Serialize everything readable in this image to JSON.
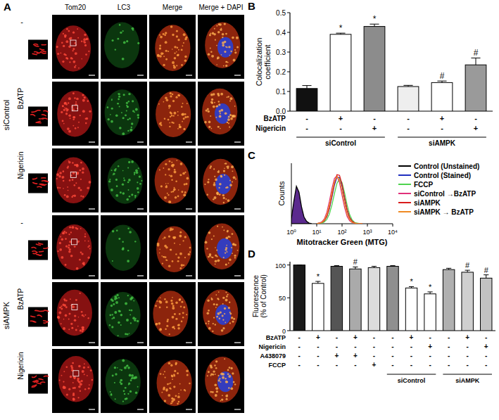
{
  "panel_a": {
    "label": "A",
    "columns": [
      "Tom20",
      "LC3",
      "Merge",
      "Merge + DAPI"
    ],
    "groups": [
      {
        "label": "siControl",
        "rows": [
          "-",
          "BzATP",
          "Nigericin"
        ]
      },
      {
        "label": "siAMPK",
        "rows": [
          "-",
          "BzATP",
          "Nigericin"
        ]
      }
    ]
  },
  "chart_data": [
    {
      "type": "bar",
      "title": "B",
      "y_label": "Colocalization coefficient",
      "values": [
        0.115,
        0.39,
        0.43,
        0.125,
        0.145,
        0.235
      ],
      "errors": [
        0.015,
        0.006,
        0.012,
        0.006,
        0.008,
        0.035
      ],
      "annotations": [
        null,
        "*",
        "*",
        null,
        "#",
        "#"
      ],
      "colors": [
        "#111111",
        "#ffffff",
        "#8c8c8c",
        "#eeeeee",
        "#ffffff",
        "#9a9a9a"
      ],
      "ylim": [
        0,
        0.5
      ],
      "yticks": [
        {
          "value": 0,
          "label": "0.0"
        },
        0.1,
        0.2,
        0.3,
        0.4,
        0.5
      ],
      "conditions": [
        {
          "label": "BzATP",
          "values": [
            "-",
            "+",
            "-",
            "-",
            "+",
            "-"
          ]
        },
        {
          "label": "Nigericin",
          "values": [
            "-",
            "-",
            "+",
            "-",
            "-",
            "+"
          ]
        }
      ],
      "groups": [
        {
          "label": "siControl",
          "start": 0,
          "count": 3
        },
        {
          "label": "siAMPK",
          "start": 3,
          "count": 3
        }
      ]
    },
    {
      "type": "line",
      "title": "C",
      "x_label": "Mitotracker Green (MTG)",
      "y_label": "Counts",
      "log": "x",
      "xlim": [
        1,
        10000
      ],
      "xticks": [
        {
          "value": 1,
          "label": "10⁰"
        },
        {
          "value": 10,
          "label": "10¹"
        },
        {
          "value": 100,
          "label": "10²"
        },
        {
          "value": 1000,
          "label": "10³"
        },
        {
          "value": 10000,
          "label": "10⁴"
        }
      ],
      "ylim": [
        0,
        100
      ],
      "tick_labels": "x",
      "legend": "right",
      "series": [
        {
          "name": "Control (Unstained)",
          "color": "#000000",
          "type": "area",
          "x": [
            1,
            1.26,
            1.58,
            2,
            2.51,
            3.16,
            3.98,
            5.01,
            6.31
          ],
          "values": [
            8,
            38,
            62,
            52,
            28,
            11,
            4,
            1,
            0
          ]
        },
        {
          "name": "Control (Stained)",
          "color": "#1f2fbf",
          "type": "line",
          "x": [
            10,
            12.59,
            15.85,
            19.95,
            25.12,
            31.62,
            39.81,
            50.12,
            63.1,
            79.43,
            100,
            125.89,
            158.49,
            199.53,
            251.19,
            316.23,
            398.11,
            501.19,
            630.96
          ],
          "values": [
            0,
            1,
            2,
            5,
            12,
            25,
            44,
            64,
            77,
            76,
            62,
            41,
            22,
            10,
            4,
            1,
            0,
            0,
            0
          ]
        },
        {
          "name": "FCCP",
          "color": "#4fd34f",
          "type": "line",
          "x": [
            10,
            12.59,
            15.85,
            19.95,
            25.12,
            31.62,
            39.81,
            50.12,
            63.1,
            79.43,
            100,
            125.89,
            158.49,
            199.53,
            251.19,
            316.23,
            398.11,
            501.19,
            630.96
          ],
          "values": [
            0,
            0,
            1,
            3,
            7,
            16,
            31,
            50,
            67,
            74,
            68,
            51,
            31,
            15,
            6,
            2,
            1,
            0,
            0
          ]
        },
        {
          "name": "siControl →BzATP",
          "color": "#e0307a",
          "type": "line",
          "x": [
            10,
            12.59,
            15.85,
            19.95,
            25.12,
            31.62,
            39.81,
            50.12,
            63.1,
            79.43,
            100,
            125.89,
            158.49,
            199.53,
            251.19,
            316.23,
            398.11,
            501.19,
            630.96
          ],
          "values": [
            0,
            1,
            3,
            8,
            19,
            37,
            58,
            75,
            79,
            68,
            47,
            27,
            12,
            5,
            2,
            1,
            0,
            0,
            0
          ]
        },
        {
          "name": "siAMPK",
          "color": "#d91c1c",
          "type": "line",
          "x": [
            10,
            12.59,
            15.85,
            19.95,
            25.12,
            31.62,
            39.81,
            50.12,
            63.1,
            79.43,
            100,
            125.89,
            158.49,
            199.53,
            251.19,
            316.23,
            398.11,
            501.19,
            630.96
          ],
          "values": [
            0,
            1,
            2,
            5,
            12,
            26,
            46,
            67,
            81,
            80,
            65,
            43,
            23,
            10,
            4,
            1,
            0,
            0,
            0
          ]
        },
        {
          "name": "siAMPK → BzATP",
          "color": "#f08a24",
          "type": "line",
          "x": [
            10,
            12.59,
            15.85,
            19.95,
            25.12,
            31.62,
            39.81,
            50.12,
            63.1,
            79.43,
            100,
            125.89,
            158.49,
            199.53,
            251.19,
            316.23,
            398.11,
            501.19,
            630.96
          ],
          "values": [
            0,
            1,
            2,
            6,
            15,
            31,
            52,
            70,
            78,
            72,
            54,
            33,
            16,
            7,
            2,
            1,
            0,
            0,
            0
          ]
        }
      ]
    },
    {
      "type": "bar",
      "title": "D",
      "y_label": "Fluorescence (% of Control)",
      "values": [
        100,
        72,
        98,
        94,
        96,
        98,
        65,
        56,
        93,
        89,
        80
      ],
      "errors": [
        0,
        3,
        1,
        3,
        2,
        1,
        2,
        3,
        2,
        3,
        5
      ],
      "annotations": [
        null,
        "*",
        null,
        "#",
        null,
        null,
        "*",
        "*",
        null,
        "#",
        "#"
      ],
      "colors": [
        "#1a1a1a",
        "#ffffff",
        "#555555",
        "#aaaaaa",
        "#dcdcdc",
        "#8f8f8f",
        "#ffffff",
        "#ffffff",
        "#b0b0b0",
        "#cfcfcf",
        "#c2c2c2"
      ],
      "ylim": [
        0,
        105
      ],
      "yticks": [
        0,
        50,
        100
      ],
      "conditions": [
        {
          "label": "BzATP",
          "values": [
            "-",
            "+",
            "-",
            "+",
            "-",
            "-",
            "+",
            "-",
            "-",
            "+",
            "-"
          ]
        },
        {
          "label": "Nigericin",
          "values": [
            "-",
            "-",
            "-",
            "-",
            "-",
            "-",
            "-",
            "+",
            "-",
            "-",
            "+"
          ]
        },
        {
          "label": "A438079",
          "values": [
            "-",
            "-",
            "+",
            "+",
            "-",
            "-",
            "-",
            "-",
            "-",
            "-",
            "-"
          ]
        },
        {
          "label": "FCCP",
          "values": [
            "-",
            "-",
            "-",
            "-",
            "+",
            "-",
            "-",
            "-",
            "-",
            "-",
            "-"
          ]
        }
      ],
      "groups": [
        {
          "label": "siControl",
          "start": 5,
          "count": 3
        },
        {
          "label": "siAMPK",
          "start": 8,
          "count": 3
        }
      ]
    }
  ]
}
